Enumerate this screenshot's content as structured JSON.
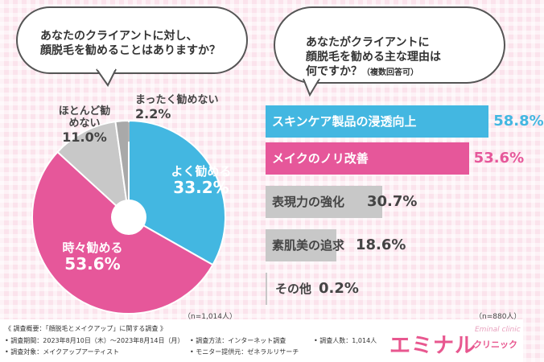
{
  "left": {
    "question": "あなたのクライアントに対し、\n顔脱毛を勧めることはありますか？",
    "note": "（n=1,014人）"
  },
  "right": {
    "question": "あなたがクライアントに\n顔脱毛を勧める主な理由は\n何ですか？",
    "question_sub": "（複数回答可）",
    "note": "（n=880人）"
  },
  "chart_data": [
    {
      "type": "pie",
      "title": "あなたのクライアントに対し、顔脱毛を勧めることはありますか？",
      "labels": [
        "よく勧める",
        "時々勧める",
        "ほとんど勧めない",
        "まったく勧めない"
      ],
      "values": [
        33.2,
        53.6,
        11.0,
        2.2
      ],
      "value_labels": [
        "33.2%",
        "53.6%",
        "11.0%",
        "2.2%"
      ],
      "colors": [
        "#43b7e1",
        "#e6579a",
        "#c8c8c8",
        "#a9a9a9"
      ]
    },
    {
      "type": "bar",
      "orientation": "horizontal",
      "title": "あなたがクライアントに顔脱毛を勧める主な理由は何ですか？（複数回答可）",
      "categories": [
        "スキンケア製品の浸透向上",
        "メイクのノリ改善",
        "表現力の強化",
        "素肌美の追求",
        "その他"
      ],
      "values": [
        58.8,
        53.6,
        30.7,
        18.6,
        0.2
      ],
      "value_labels": [
        "58.8%",
        "53.6%",
        "30.7%",
        "18.6%",
        "0.2%"
      ],
      "colors": [
        "#43b7e1",
        "#e6579a",
        "#c8c8c8",
        "#c8c8c8",
        "#c8c8c8"
      ],
      "xlim": [
        0,
        70
      ]
    }
  ],
  "footer": {
    "summary": "《 調査概要：「顔脱毛とメイクアップ」に関する調査 》",
    "period": "• 調査期間：2023年8月10日（木）〜2023年8月14日（月）",
    "method": "• 調査方法：インターネット調査",
    "count": "• 調査人数：1,014人",
    "target": "• 調査対象：メイクアップアーティスト",
    "provider": "• モニター提供元：ゼネラルリサーチ",
    "logo_main": "エミナル",
    "logo_sub": "クリニック",
    "logo_script": "Eminal clinic"
  }
}
